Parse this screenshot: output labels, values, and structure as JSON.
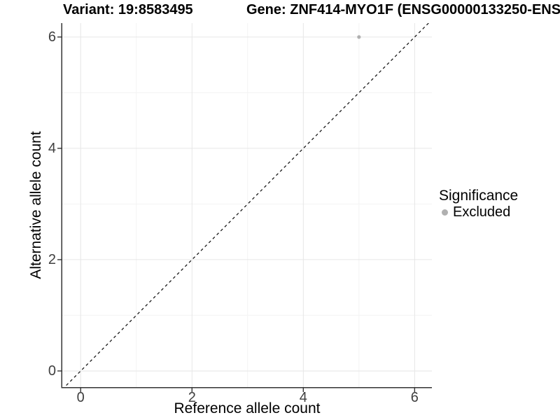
{
  "chart_data": {
    "type": "scatter",
    "titles": {
      "left": "Variant: 19:8583495",
      "right": "Gene: ZNF414-MYO1F (ENSG00000133250-ENS"
    },
    "xlabel": "Reference allele count",
    "ylabel": "Alternative allele count",
    "xlim": [
      -0.33,
      6.31
    ],
    "ylim": [
      -0.29,
      6.25
    ],
    "x_major_ticks": [
      0,
      2,
      4,
      6
    ],
    "x_minor_ticks": [
      1,
      3,
      5
    ],
    "y_major_ticks": [
      0,
      2,
      4,
      6
    ],
    "y_minor_ticks": [
      1,
      3,
      5
    ],
    "grid": true,
    "series": [
      {
        "name": "Excluded",
        "points": [
          {
            "x": 5,
            "y": 6
          }
        ]
      }
    ],
    "abline": {
      "slope": 1,
      "intercept": 0,
      "style": "dashed",
      "color": "#1a1a1a"
    },
    "legend": {
      "title": "Significance",
      "position": "right",
      "items": [
        {
          "label": "Excluded",
          "color": "#b0b0b0"
        }
      ]
    },
    "colors": {
      "point": "#b0b0b0",
      "grid_major": "#e6e6e6",
      "grid_minor": "#f3f3f3",
      "axis_line": "#343434",
      "tick_label": "#404040",
      "background": "#ffffff"
    }
  }
}
